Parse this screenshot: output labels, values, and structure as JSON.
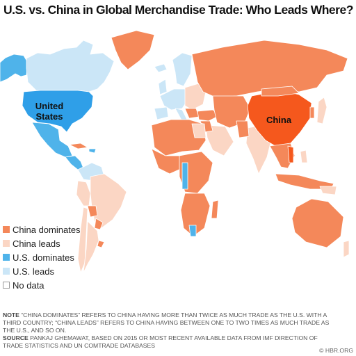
{
  "title": "U.S. vs. China in Global Merchandise Trade: Who Leads Where?",
  "colors": {
    "china_dominates": "#f4885a",
    "china_leads": "#fbd6c4",
    "us_dominates": "#4fb3ea",
    "us_leads": "#cbe6f7",
    "no_data": "#ffffff",
    "china": "#f5581d",
    "us": "#2f9fe8"
  },
  "map": {
    "us_label_line1": "United",
    "us_label_line2": "States",
    "china_label": "China"
  },
  "legend": [
    {
      "label": "China dominates",
      "color": "#f4885a"
    },
    {
      "label": "China leads",
      "color": "#fbd6c4"
    },
    {
      "label": "U.S. dominates",
      "color": "#4fb3ea"
    },
    {
      "label": "U.S. leads",
      "color": "#cbe6f7"
    },
    {
      "label": "No data",
      "color": "#ffffff"
    }
  ],
  "note": {
    "label": "NOTE",
    "text": "“CHINA DOMINATES” REFERS TO CHINA HAVING MORE THAN TWICE AS MUCH TRADE AS THE U.S. WITH A THIRD COUNTRY; “CHINA LEADS” REFERS TO CHINA HAVING BETWEEN ONE TO TWO TIMES AS MUCH TRADE AS THE U.S., AND SO ON.",
    "source_label": "SOURCE",
    "source_text": "PANKAJ GHEMAWAT, BASED ON 2015 OR MOST RECENT AVAILABLE DATA FROM IMF DIRECTION OF TRADE STATISTICS AND UN COMTRADE DATABASES"
  },
  "credit": "© HBR.ORG"
}
